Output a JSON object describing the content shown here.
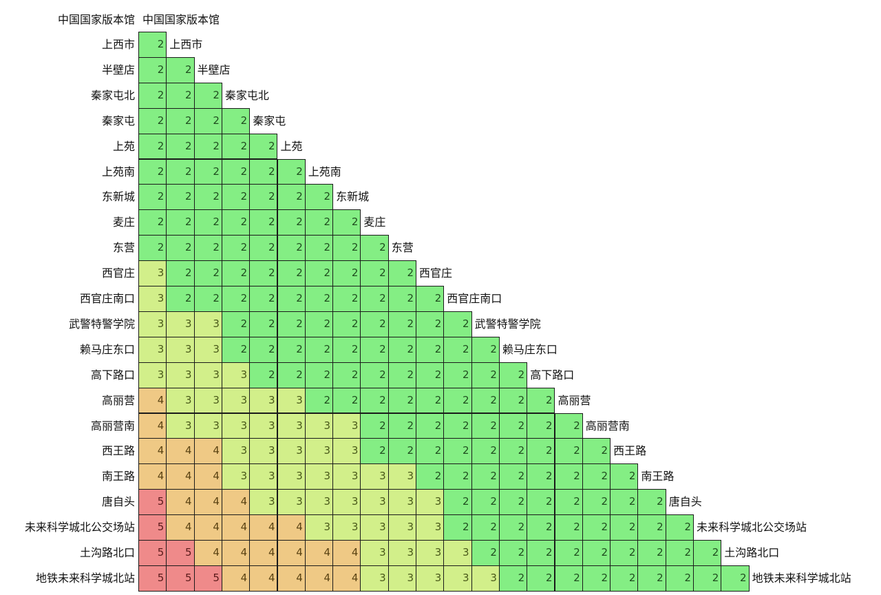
{
  "chart_data": {
    "type": "heatmap",
    "description_labels": {
      "corner_left": "中国国家版本馆",
      "corner_top": "中国国家版本馆"
    },
    "stations": [
      "上西市",
      "半壁店",
      "秦家屯北",
      "秦家屯",
      "上苑",
      "上苑南",
      "东新城",
      "麦庄",
      "东营",
      "西官庄",
      "西官庄南口",
      "武警特警学院",
      "赖马庄东口",
      "高下路口",
      "高丽营",
      "高丽营南",
      "西王路",
      "南王路",
      "唐自头",
      "未来科学城北公交场站",
      "土沟路北口",
      "地铁未来科学城北站"
    ],
    "values": [
      [
        2
      ],
      [
        2,
        2
      ],
      [
        2,
        2,
        2
      ],
      [
        2,
        2,
        2,
        2
      ],
      [
        2,
        2,
        2,
        2,
        2
      ],
      [
        2,
        2,
        2,
        2,
        2,
        2
      ],
      [
        2,
        2,
        2,
        2,
        2,
        2,
        2
      ],
      [
        2,
        2,
        2,
        2,
        2,
        2,
        2,
        2
      ],
      [
        2,
        2,
        2,
        2,
        2,
        2,
        2,
        2,
        2
      ],
      [
        3,
        2,
        2,
        2,
        2,
        2,
        2,
        2,
        2,
        2
      ],
      [
        3,
        2,
        2,
        2,
        2,
        2,
        2,
        2,
        2,
        2,
        2
      ],
      [
        3,
        3,
        3,
        2,
        2,
        2,
        2,
        2,
        2,
        2,
        2,
        2
      ],
      [
        3,
        3,
        3,
        2,
        2,
        2,
        2,
        2,
        2,
        2,
        2,
        2,
        2
      ],
      [
        3,
        3,
        3,
        3,
        2,
        2,
        2,
        2,
        2,
        2,
        2,
        2,
        2,
        2
      ],
      [
        4,
        3,
        3,
        3,
        3,
        3,
        2,
        2,
        2,
        2,
        2,
        2,
        2,
        2,
        2
      ],
      [
        4,
        3,
        3,
        3,
        3,
        3,
        3,
        3,
        2,
        2,
        2,
        2,
        2,
        2,
        2,
        2
      ],
      [
        4,
        4,
        4,
        3,
        3,
        3,
        3,
        3,
        2,
        2,
        2,
        2,
        2,
        2,
        2,
        2,
        2
      ],
      [
        4,
        4,
        4,
        3,
        3,
        3,
        3,
        3,
        3,
        3,
        2,
        2,
        2,
        2,
        2,
        2,
        2,
        2
      ],
      [
        5,
        4,
        4,
        4,
        3,
        3,
        3,
        3,
        3,
        3,
        3,
        2,
        2,
        2,
        2,
        2,
        2,
        2,
        2
      ],
      [
        5,
        4,
        4,
        4,
        4,
        4,
        3,
        3,
        3,
        3,
        3,
        2,
        2,
        2,
        2,
        2,
        2,
        2,
        2,
        2
      ],
      [
        5,
        5,
        4,
        4,
        4,
        4,
        4,
        4,
        3,
        3,
        3,
        3,
        2,
        2,
        2,
        2,
        2,
        2,
        2,
        2,
        2
      ],
      [
        5,
        5,
        5,
        4,
        4,
        4,
        4,
        4,
        3,
        3,
        3,
        3,
        3,
        2,
        2,
        2,
        2,
        2,
        2,
        2,
        2,
        2
      ]
    ],
    "colors": {
      "2": "#84ee84",
      "3": "#d2ef8a",
      "4": "#efc985",
      "5": "#ef8a8a"
    }
  }
}
